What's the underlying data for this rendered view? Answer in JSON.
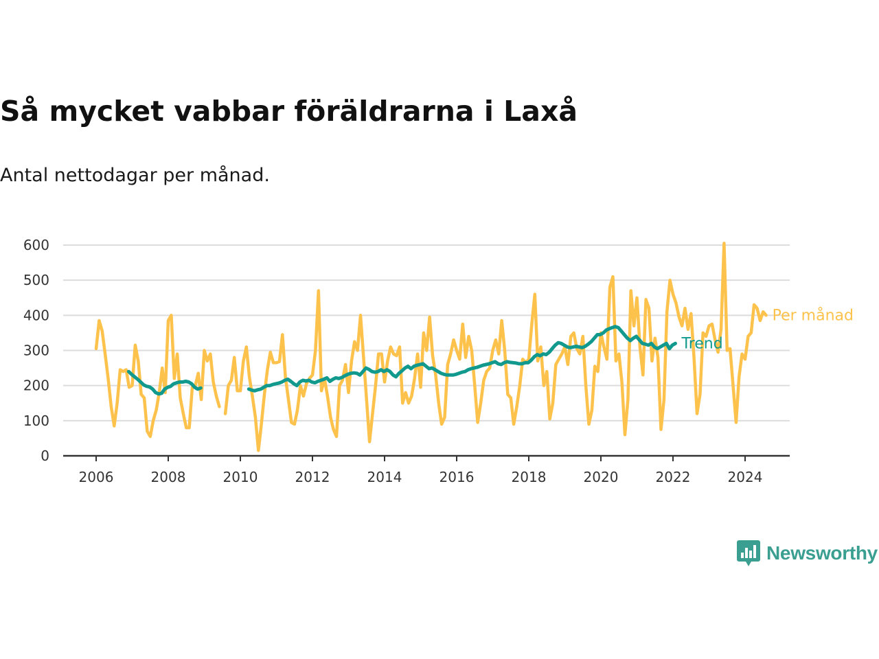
{
  "title": "Så mycket vabbar föräldrarna i Laxå",
  "subtitle": "Antal nettodagar per månad.",
  "brand": {
    "name": "Newsworthy",
    "icon": "newsworthy-logo-icon",
    "color": "#3a9e91"
  },
  "chart_data": {
    "type": "line",
    "grid": true,
    "y_ticks": [
      0,
      100,
      200,
      300,
      400,
      500,
      600
    ],
    "x_ticks": [
      "2006",
      "2008",
      "2010",
      "2012",
      "2014",
      "2016",
      "2018",
      "2020",
      "2022",
      "2024"
    ],
    "xlim": [
      2006,
      2025.3
    ],
    "ylim": [
      0,
      600
    ],
    "series": [
      {
        "name": "Per månad",
        "color": "#fcc24c",
        "x_start": 2006.0,
        "step_months": 1,
        "values": [
          305,
          385,
          355,
          290,
          220,
          140,
          85,
          150,
          245,
          240,
          245,
          195,
          200,
          315,
          270,
          175,
          165,
          70,
          55,
          100,
          130,
          180,
          250,
          180,
          385,
          400,
          220,
          290,
          165,
          120,
          80,
          80,
          195,
          200,
          235,
          160,
          300,
          270,
          290,
          210,
          170,
          140,
          null,
          120,
          200,
          215,
          280,
          185,
          185,
          270,
          310,
          225,
          170,
          110,
          15,
          90,
          175,
          245,
          295,
          265,
          265,
          268,
          345,
          225,
          160,
          95,
          90,
          130,
          200,
          170,
          205,
          220,
          230,
          300,
          470,
          185,
          220,
          170,
          110,
          75,
          55,
          200,
          215,
          260,
          180,
          270,
          325,
          300,
          400,
          280,
          160,
          40,
          120,
          200,
          290,
          290,
          210,
          270,
          310,
          290,
          285,
          310,
          150,
          180,
          150,
          170,
          220,
          290,
          195,
          350,
          300,
          395,
          285,
          230,
          150,
          90,
          110,
          260,
          290,
          330,
          300,
          275,
          375,
          280,
          340,
          300,
          200,
          95,
          150,
          215,
          240,
          250,
          300,
          330,
          290,
          385,
          300,
          175,
          165,
          90,
          140,
          200,
          275,
          265,
          275,
          375,
          460,
          270,
          310,
          200,
          240,
          105,
          150,
          260,
          275,
          290,
          310,
          260,
          340,
          350,
          305,
          290,
          340,
          200,
          90,
          130,
          255,
          240,
          350,
          310,
          275,
          480,
          510,
          270,
          290,
          210,
          60,
          160,
          470,
          370,
          450,
          310,
          230,
          445,
          420,
          270,
          335,
          280,
          75,
          160,
          410,
          500,
          460,
          435,
          395,
          370,
          420,
          360,
          405,
          280,
          120,
          175,
          350,
          340,
          370,
          375,
          330,
          295,
          360,
          605,
          300,
          305,
          200,
          95,
          225,
          290,
          275,
          340,
          350,
          430,
          420,
          385,
          410,
          400
        ],
        "end_label": "Per månad"
      },
      {
        "name": "Trend",
        "color": "#11998e",
        "x_start": 2006.9,
        "step_months": 1,
        "values": [
          240,
          232,
          225,
          218,
          210,
          202,
          198,
          196,
          190,
          180,
          176,
          178,
          190,
          195,
          198,
          205,
          208,
          210,
          210,
          212,
          210,
          205,
          195,
          190,
          193,
          null,
          null,
          null,
          null,
          null,
          null,
          null,
          null,
          null,
          null,
          null,
          null,
          null,
          null,
          null,
          190,
          187,
          185,
          188,
          190,
          195,
          200,
          200,
          203,
          205,
          207,
          210,
          215,
          218,
          212,
          205,
          200,
          210,
          215,
          213,
          215,
          210,
          208,
          212,
          215,
          218,
          222,
          212,
          218,
          222,
          220,
          223,
          228,
          232,
          235,
          236,
          235,
          230,
          240,
          250,
          246,
          240,
          238,
          240,
          245,
          240,
          245,
          240,
          230,
          225,
          235,
          242,
          250,
          255,
          248,
          255,
          258,
          260,
          262,
          255,
          248,
          250,
          245,
          240,
          235,
          232,
          230,
          230,
          230,
          232,
          235,
          238,
          240,
          245,
          248,
          250,
          252,
          255,
          258,
          260,
          262,
          265,
          268,
          262,
          260,
          265,
          268,
          266,
          265,
          264,
          262,
          262,
          265,
          265,
          272,
          282,
          288,
          285,
          290,
          288,
          295,
          305,
          315,
          322,
          320,
          315,
          310,
          308,
          310,
          312,
          310,
          308,
          312,
          318,
          325,
          335,
          345,
          345,
          350,
          358,
          362,
          365,
          368,
          365,
          355,
          345,
          335,
          328,
          335,
          340,
          330,
          320,
          318,
          315,
          320,
          310,
          305,
          310,
          315,
          320,
          305,
          315,
          320
        ],
        "end_label": "Trend"
      }
    ]
  }
}
